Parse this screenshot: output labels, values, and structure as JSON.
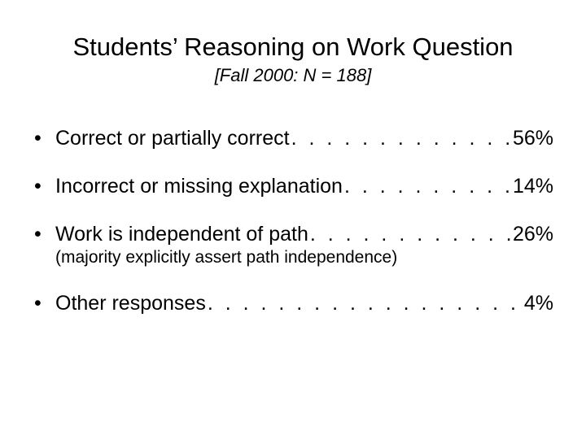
{
  "title": "Students’ Reasoning on Work Question",
  "subtitle": "[Fall 2000: N = 188]",
  "items": [
    {
      "label": "Correct or partially correct ",
      "pct": "56%",
      "note": null
    },
    {
      "label": "Incorrect or missing explanation ",
      "pct": "14%",
      "note": null
    },
    {
      "label": "Work is independent of path ",
      "pct": "26%",
      "note": "(majority explicitly assert path independence)"
    },
    {
      "label": "Other responses ",
      "pct": "4%",
      "note": null
    }
  ],
  "leader_char": ". . . . . . . . . . . . . . . . . . . . . . . . . . . . . . . . . . . . . . . ."
}
